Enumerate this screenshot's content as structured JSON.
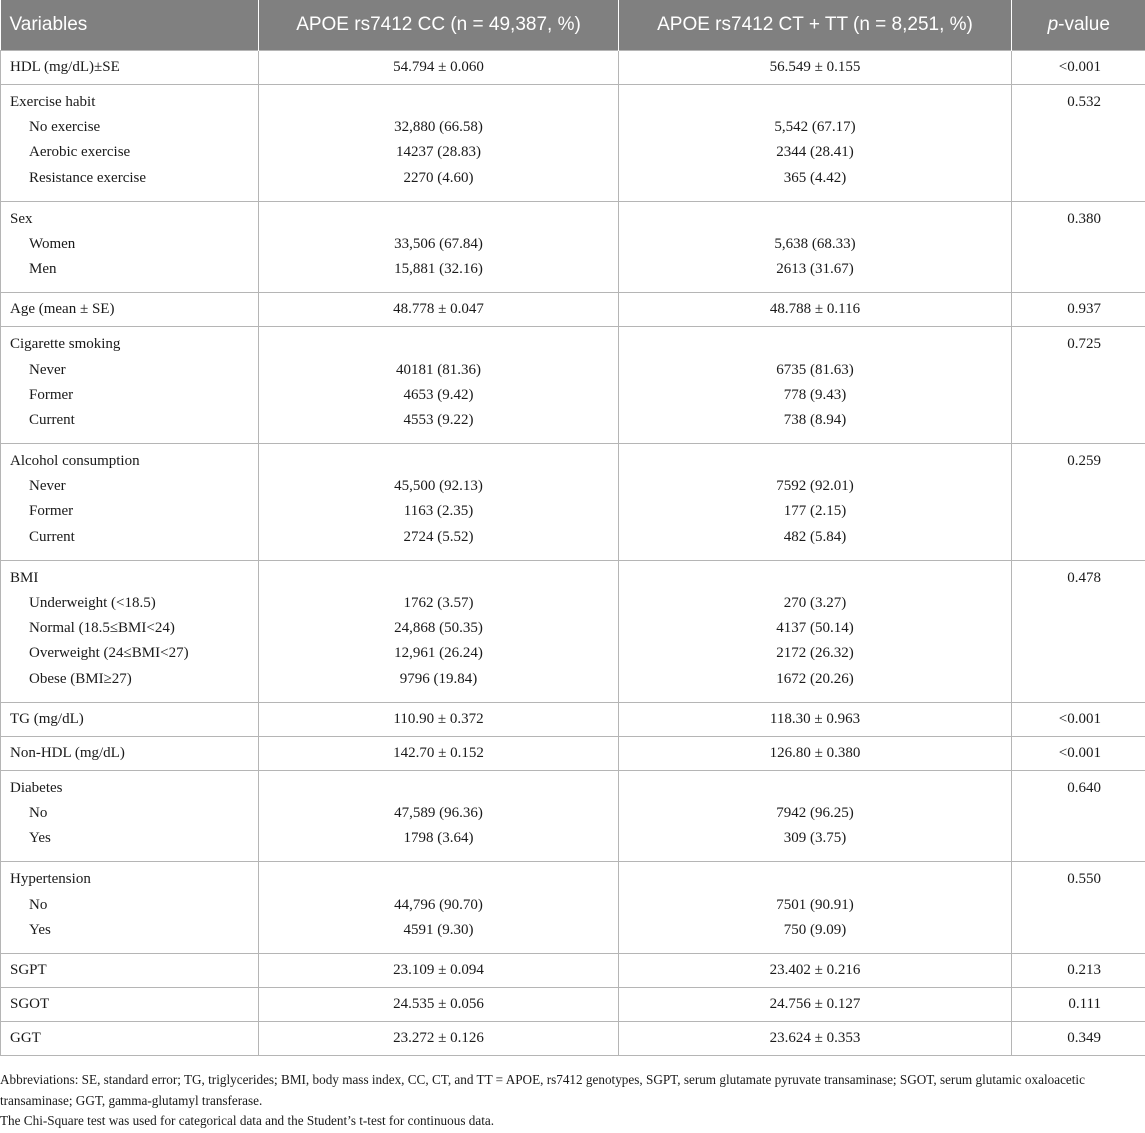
{
  "table": {
    "headers": {
      "variables": "Variables",
      "cc": "APOE rs7412 CC (n = 49,387, %)",
      "ct_tt": "APOE rs7412 CT + TT (n = 8,251, %)",
      "p_italic": "p",
      "p_rest": "-value"
    },
    "rows": [
      {
        "label": "HDL (mg/dL)±SE",
        "cc": "54.794 ± 0.060",
        "ct_tt": "56.549 ± 0.155",
        "p": "<0.001"
      },
      {
        "label": "Exercise habit",
        "p": "0.532",
        "sub": [
          {
            "label": "No exercise",
            "cc": "32,880 (66.58)",
            "ct_tt": "5,542 (67.17)"
          },
          {
            "label": "Aerobic exercise",
            "cc": "14237 (28.83)",
            "ct_tt": "2344 (28.41)"
          },
          {
            "label": "Resistance exercise",
            "cc": "2270 (4.60)",
            "ct_tt": "365 (4.42)"
          }
        ]
      },
      {
        "label": "Sex",
        "p": "0.380",
        "sub": [
          {
            "label": "Women",
            "cc": "33,506 (67.84)",
            "ct_tt": "5,638 (68.33)"
          },
          {
            "label": "Men",
            "cc": "15,881 (32.16)",
            "ct_tt": "2613 (31.67)"
          }
        ]
      },
      {
        "label": "Age (mean ± SE)",
        "cc": "48.778 ± 0.047",
        "ct_tt": "48.788 ± 0.116",
        "p": "0.937"
      },
      {
        "label": "Cigarette smoking",
        "p": "0.725",
        "sub": [
          {
            "label": "Never",
            "cc": "40181 (81.36)",
            "ct_tt": "6735 (81.63)"
          },
          {
            "label": "Former",
            "cc": "4653 (9.42)",
            "ct_tt": "778 (9.43)"
          },
          {
            "label": "Current",
            "cc": "4553 (9.22)",
            "ct_tt": "738 (8.94)"
          }
        ]
      },
      {
        "label": "Alcohol consumption",
        "p": "0.259",
        "sub": [
          {
            "label": "Never",
            "cc": "45,500 (92.13)",
            "ct_tt": "7592 (92.01)"
          },
          {
            "label": "Former",
            "cc": "1163 (2.35)",
            "ct_tt": "177 (2.15)"
          },
          {
            "label": "Current",
            "cc": "2724 (5.52)",
            "ct_tt": "482 (5.84)"
          }
        ]
      },
      {
        "label": "BMI",
        "p": "0.478",
        "sub": [
          {
            "label": "Underweight (<18.5)",
            "cc": "1762 (3.57)",
            "ct_tt": "270 (3.27)"
          },
          {
            "label": "Normal (18.5≤BMI<24)",
            "cc": "24,868 (50.35)",
            "ct_tt": "4137 (50.14)"
          },
          {
            "label": "Overweight (24≤BMI<27)",
            "cc": "12,961 (26.24)",
            "ct_tt": "2172 (26.32)"
          },
          {
            "label": "Obese (BMI≥27)",
            "cc": "9796 (19.84)",
            "ct_tt": "1672 (20.26)"
          }
        ]
      },
      {
        "label": "TG (mg/dL)",
        "cc": "110.90 ± 0.372",
        "ct_tt": "118.30 ± 0.963",
        "p": "<0.001"
      },
      {
        "label": "Non-HDL (mg/dL)",
        "cc": "142.70 ± 0.152",
        "ct_tt": "126.80 ± 0.380",
        "p": "<0.001"
      },
      {
        "label": "Diabetes",
        "p": "0.640",
        "sub": [
          {
            "label": "No",
            "cc": "47,589 (96.36)",
            "ct_tt": "7942 (96.25)"
          },
          {
            "label": "Yes",
            "cc": "1798 (3.64)",
            "ct_tt": "309 (3.75)"
          }
        ]
      },
      {
        "label": "Hypertension",
        "p": "0.550",
        "sub": [
          {
            "label": "No",
            "cc": "44,796 (90.70)",
            "ct_tt": "7501 (90.91)"
          },
          {
            "label": "Yes",
            "cc": "4591 (9.30)",
            "ct_tt": "750 (9.09)"
          }
        ]
      },
      {
        "label": "SGPT",
        "cc": "23.109 ± 0.094",
        "ct_tt": "23.402 ± 0.216",
        "p": "0.213"
      },
      {
        "label": "SGOT",
        "cc": "24.535 ± 0.056",
        "ct_tt": "24.756 ± 0.127",
        "p": "0.111"
      },
      {
        "label": "GGT",
        "cc": "23.272 ± 0.126",
        "ct_tt": "23.624 ± 0.353",
        "p": "0.349"
      }
    ]
  },
  "footnotes": [
    "Abbreviations: SE, standard error; TG, triglycerides; BMI, body mass index, CC, CT, and TT = APOE, rs7412 genotypes, SGPT, serum glutamate pyruvate transaminase; SGOT, serum glutamic oxaloacetic transaminase; GGT, gamma-glutamyl transferase.",
    "The Chi-Square test was used for categorical data and the Student’s t-test for continuous data."
  ]
}
